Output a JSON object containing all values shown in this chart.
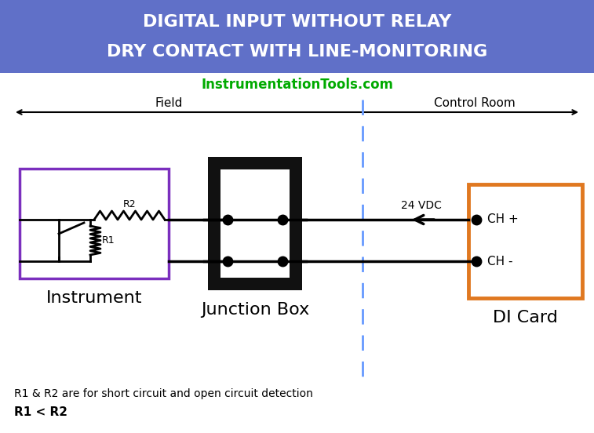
{
  "title_line1": "DIGITAL INPUT WITHOUT RELAY",
  "title_line2": "DRY CONTACT WITH LINE-MONITORING",
  "title_bg_color": "#6070c8",
  "title_text_color": "#ffffff",
  "website": "InstrumentationTools.com",
  "website_color": "#00aa00",
  "field_label": "Field",
  "control_room_label": "Control Room",
  "instrument_label": "Instrument",
  "instrument_box_color": "#7b2fbe",
  "junction_box_label": "Junction Box",
  "junction_box_outer_color": "#111111",
  "di_card_label": "DI Card",
  "di_card_color": "#e07820",
  "ch_plus_label": "CH +",
  "ch_minus_label": "CH -",
  "vdc_label": "24 VDC",
  "divider_color": "#6699ff",
  "wire_color": "#000000",
  "dot_color": "#000000",
  "note_line1": "R1 & R2 are for short circuit and open circuit detection",
  "note_line2": "R1 < R2",
  "r1_label": "R1",
  "r2_label": "R2",
  "bg_color": "#ffffff",
  "figw": 7.57,
  "figh": 5.52,
  "dpi": 100
}
